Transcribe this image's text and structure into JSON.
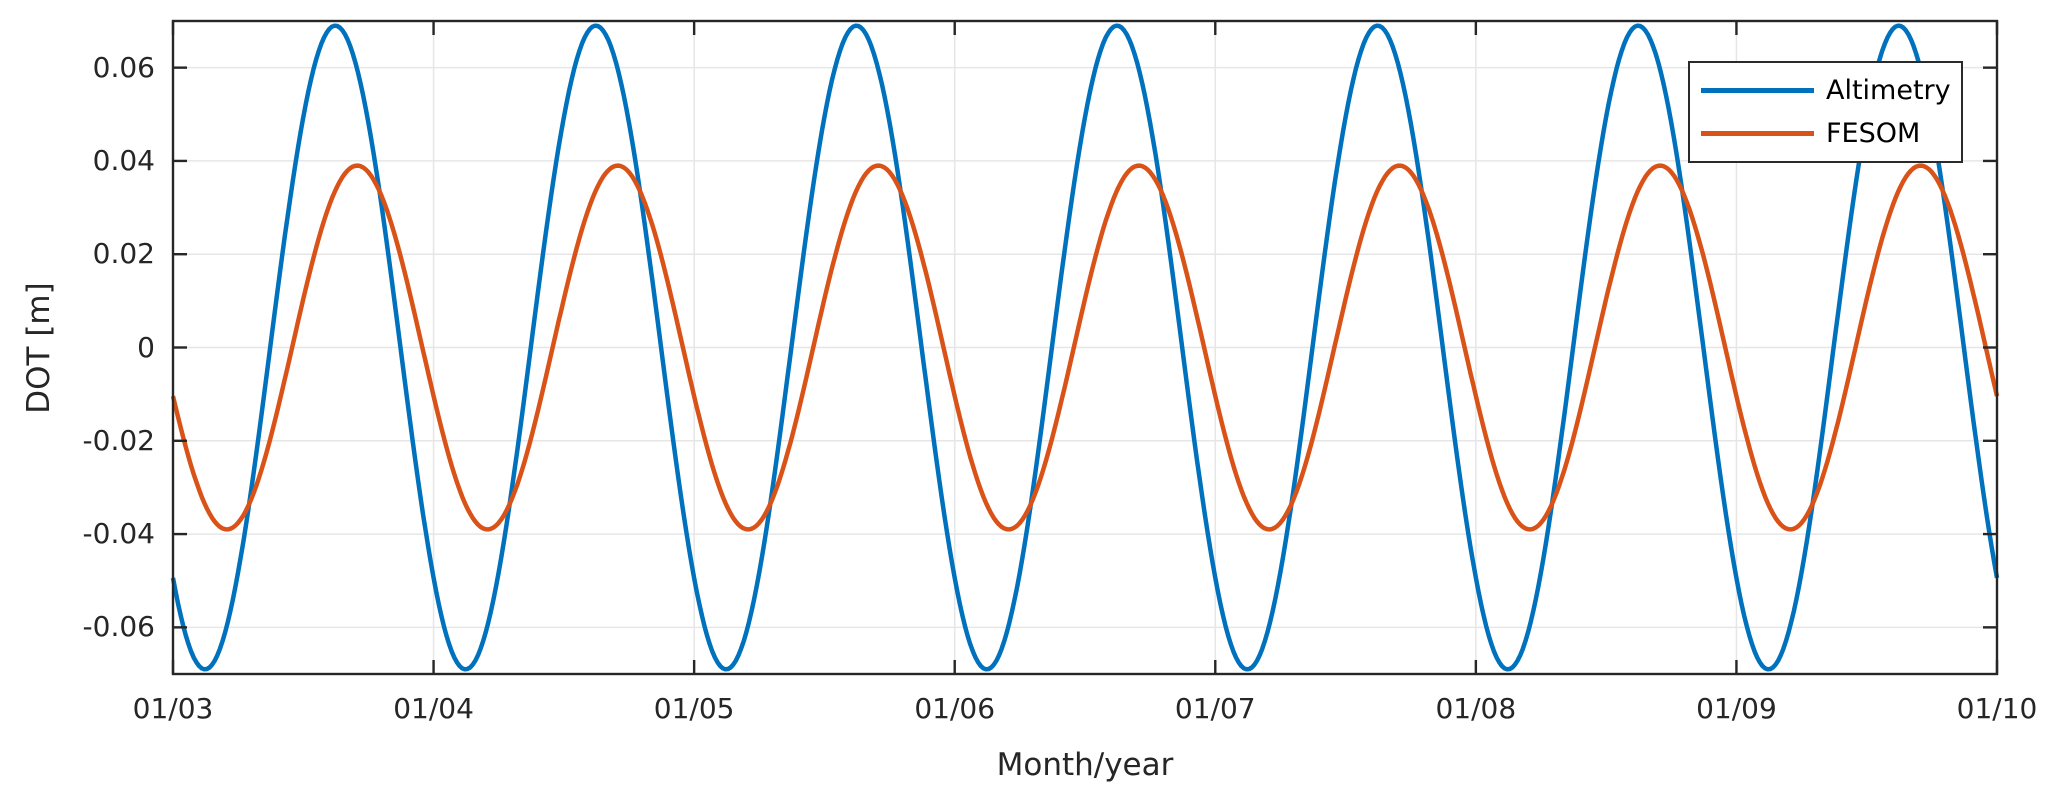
{
  "chart_data": {
    "type": "line",
    "title": "",
    "xlabel": "Month/year",
    "ylabel": "DOT [m]",
    "x_unit": "months since first tick",
    "x_range_months": [
      0,
      7
    ],
    "x_tick_labels": [
      "01/03",
      "01/04",
      "01/05",
      "01/06",
      "01/07",
      "01/08",
      "01/09",
      "01/10"
    ],
    "ylim": [
      -0.07,
      0.07
    ],
    "y_ticks": [
      0.06,
      0.04,
      0.02,
      0,
      -0.02,
      -0.04,
      -0.06
    ],
    "y_tick_labels": [
      "0.06",
      "0.04",
      "0.02",
      "0",
      "-0.02",
      "-0.04",
      "-0.06"
    ],
    "grid": true,
    "legend_position": "top-right",
    "series": [
      {
        "name": "Altimetry",
        "color": "#0072BD",
        "model": "sinusoid",
        "amplitude_m": 0.069,
        "period_months": 1,
        "minimum_at_month": 0.123,
        "maximum_at_month": 0.623,
        "min_value_m": -0.069,
        "max_value_m": 0.069,
        "value_at_start_m": -0.049,
        "value_at_end_m": -0.049
      },
      {
        "name": "FESOM",
        "color": "#D95319",
        "model": "sinusoid",
        "amplitude_m": 0.039,
        "period_months": 1,
        "minimum_at_month": 0.207,
        "maximum_at_month": 0.707,
        "min_value_m": -0.039,
        "max_value_m": 0.039,
        "value_at_start_m": -0.01,
        "value_at_end_m": -0.01
      }
    ]
  },
  "colors": {
    "background": "#ffffff",
    "axis": "#262626",
    "grid": "#e6e6e6",
    "text": "#262626"
  }
}
